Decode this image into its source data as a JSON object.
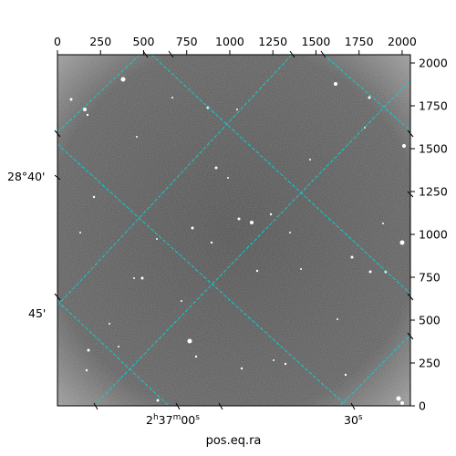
{
  "pixel_axes": {
    "x_range": [
      0,
      2048
    ],
    "y_range": [
      0,
      2048
    ],
    "top_ticks": [
      "0",
      "250",
      "500",
      "750",
      "1000",
      "1250",
      "1500",
      "1750",
      "2000"
    ],
    "right_ticks": [
      "0",
      "250",
      "500",
      "750",
      "1000",
      "1250",
      "1500",
      "1750",
      "2000"
    ]
  },
  "world_axes": {
    "left_labels": [
      "28°40'",
      "45'"
    ],
    "bottom_labels": [
      "2h37m00s",
      "30s"
    ],
    "bottom_label_main": "2",
    "bottom_label_h": "h",
    "bottom_label_mid": "37",
    "bottom_label_m": "m",
    "bottom_label_tail": "00",
    "bottom_label_s": "s",
    "bottom_label_2_main": "30",
    "bottom_label_2_s": "s",
    "xlabel": "pos.eq.ra"
  },
  "colors": {
    "grid": "#00d8d8",
    "image_base": "#4a4a4a",
    "frame": "#000000"
  },
  "image": {
    "description_type": "grayscale astronomical star field",
    "grid_style": "dashed"
  }
}
